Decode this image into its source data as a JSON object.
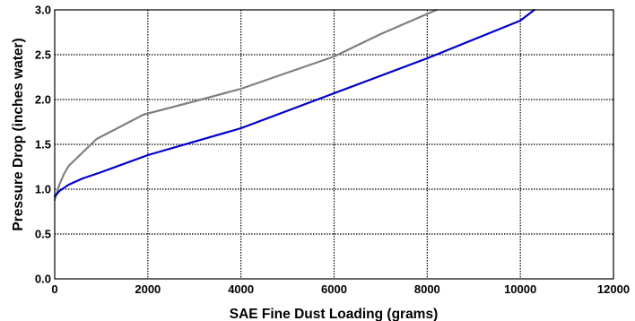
{
  "chart_data": {
    "type": "line",
    "xlabel": "SAE Fine Dust Loading (grams)",
    "ylabel": "Pressure Drop   (inches water)",
    "xlim": [
      0,
      12000
    ],
    "ylim": [
      0,
      3.0
    ],
    "x_ticks": [
      0,
      2000,
      4000,
      6000,
      8000,
      10000,
      12000
    ],
    "y_ticks": [
      0.0,
      0.5,
      1.0,
      1.5,
      2.0,
      2.5,
      3.0
    ],
    "x_tick_labels": [
      "0",
      "2000",
      "4000",
      "6000",
      "8000",
      "10000",
      "12000"
    ],
    "y_tick_labels": [
      "0.0",
      "0.5",
      "1.0",
      "1.5",
      "2.0",
      "2.5",
      "3.0"
    ],
    "grid": true,
    "series": [
      {
        "color": "#808080",
        "x": [
          0,
          100,
          200,
          300,
          500,
          900,
          1900,
          3000,
          4000,
          5000,
          6000,
          7000,
          8200
        ],
        "y": [
          0.88,
          1.05,
          1.17,
          1.26,
          1.36,
          1.56,
          1.83,
          1.98,
          2.12,
          2.3,
          2.48,
          2.73,
          3.0
        ]
      },
      {
        "color": "#0000cc",
        "x": [
          0,
          100,
          300,
          600,
          1000,
          2000,
          4000,
          6000,
          8000,
          10000,
          10300
        ],
        "y": [
          0.92,
          0.98,
          1.05,
          1.12,
          1.19,
          1.38,
          1.68,
          2.07,
          2.46,
          2.88,
          3.0
        ]
      }
    ]
  }
}
